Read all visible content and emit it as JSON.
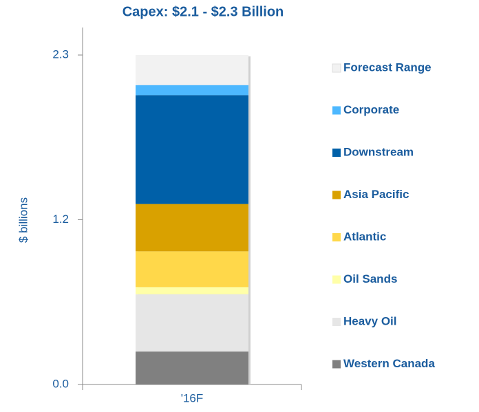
{
  "chart_data": {
    "type": "stacked_bar",
    "title": "Capex: $2.1 - $2.3 Billion",
    "y_label": "$ billions",
    "categories": [
      "'16F"
    ],
    "series": [
      {
        "name": "Western Canada",
        "color": "#808080",
        "values": [
          0.23
        ]
      },
      {
        "name": "Heavy Oil",
        "color": "#e6e6e6",
        "values": [
          0.4
        ]
      },
      {
        "name": "Oil Sands",
        "color": "#ffffa8",
        "values": [
          0.05
        ]
      },
      {
        "name": "Atlantic",
        "color": "#ffd84a",
        "values": [
          0.25
        ]
      },
      {
        "name": "Asia Pacific",
        "color": "#d9a100",
        "values": [
          0.33
        ]
      },
      {
        "name": "Downstream",
        "color": "#0060a8",
        "values": [
          0.76
        ]
      },
      {
        "name": "Corporate",
        "color": "#4db8ff",
        "values": [
          0.07
        ]
      },
      {
        "name": "Forecast Range",
        "color": "#f2f2f2",
        "values": [
          0.21
        ]
      }
    ],
    "ylim": [
      0,
      2.3
    ],
    "yticks": [
      {
        "value": 0,
        "label": "0.0"
      },
      {
        "value": 1.15,
        "label": "1.2"
      },
      2.3
    ],
    "legend": "right"
  }
}
